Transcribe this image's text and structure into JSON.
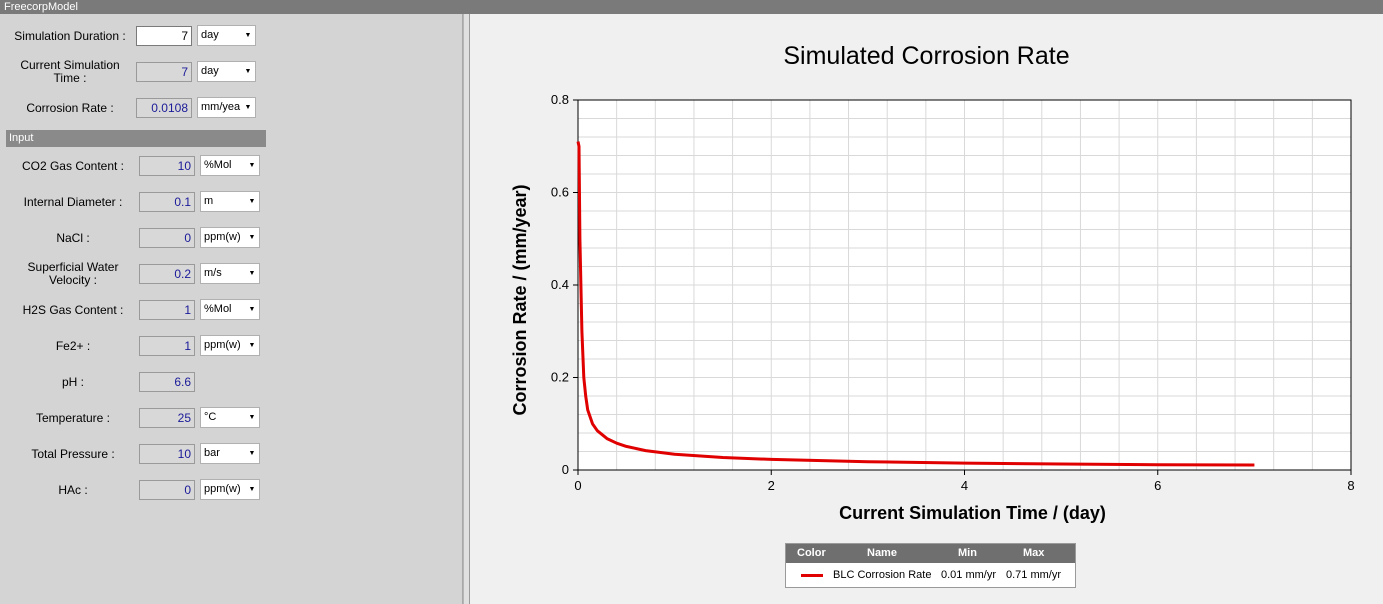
{
  "window": {
    "title": "FreecorpModel"
  },
  "status": [
    {
      "label": "Simulation Duration :",
      "value": "7",
      "unit": "day",
      "editable": true
    },
    {
      "label": "Current Simulation Time :",
      "value": "7",
      "unit": "day",
      "editable": false
    },
    {
      "label": "Corrosion Rate :",
      "value": "0.0108",
      "unit": "mm/yea",
      "editable": false
    }
  ],
  "input_section": {
    "title": "Input"
  },
  "inputs": [
    {
      "label": "CO2 Gas Content :",
      "value": "10",
      "unit": "%Mol"
    },
    {
      "label": "Internal Diameter :",
      "value": "0.1",
      "unit": "m"
    },
    {
      "label": "NaCl :",
      "value": "0",
      "unit": "ppm(w)"
    },
    {
      "label": "Superficial Water Velocity :",
      "value": "0.2",
      "unit": "m/s"
    },
    {
      "label": "H2S Gas Content :",
      "value": "1",
      "unit": "%Mol"
    },
    {
      "label": "Fe2+ :",
      "value": "1",
      "unit": "ppm(w)"
    },
    {
      "label": "pH :",
      "value": "6.6",
      "unit": ""
    },
    {
      "label": "Temperature :",
      "value": "25",
      "unit": "°C"
    },
    {
      "label": "Total Pressure :",
      "value": "10",
      "unit": "bar"
    },
    {
      "label": "HAc :",
      "value": "0",
      "unit": "ppm(w)"
    }
  ],
  "chart_data": {
    "type": "line",
    "title": "Simulated Corrosion Rate",
    "xlabel": "Current Simulation Time / (day)",
    "ylabel": "Corrosion Rate / (mm/year)",
    "xlim": [
      0,
      8
    ],
    "ylim": [
      0,
      0.8
    ],
    "xticks": [
      "0",
      "2",
      "4",
      "6",
      "8"
    ],
    "yticks": [
      "0",
      "0.2",
      "0.4",
      "0.6",
      "0.8"
    ],
    "grid": true,
    "series": [
      {
        "name": "BLC Corrosion Rate",
        "color": "#e00000",
        "x": [
          0,
          0.01,
          0.02,
          0.04,
          0.06,
          0.08,
          0.1,
          0.15,
          0.2,
          0.3,
          0.4,
          0.5,
          0.7,
          1.0,
          1.5,
          2.0,
          3.0,
          4.0,
          5.0,
          6.0,
          7.0
        ],
        "y": [
          0.71,
          0.7,
          0.5,
          0.3,
          0.2,
          0.16,
          0.13,
          0.1,
          0.085,
          0.068,
          0.058,
          0.051,
          0.042,
          0.034,
          0.027,
          0.023,
          0.018,
          0.015,
          0.013,
          0.0115,
          0.0108
        ]
      }
    ]
  },
  "legend": {
    "headers": {
      "color": "Color",
      "name": "Name",
      "min": "Min",
      "max": "Max"
    },
    "row": {
      "name": "BLC Corrosion Rate",
      "min": "0.01 mm/yr",
      "max": "0.71 mm/yr"
    }
  }
}
